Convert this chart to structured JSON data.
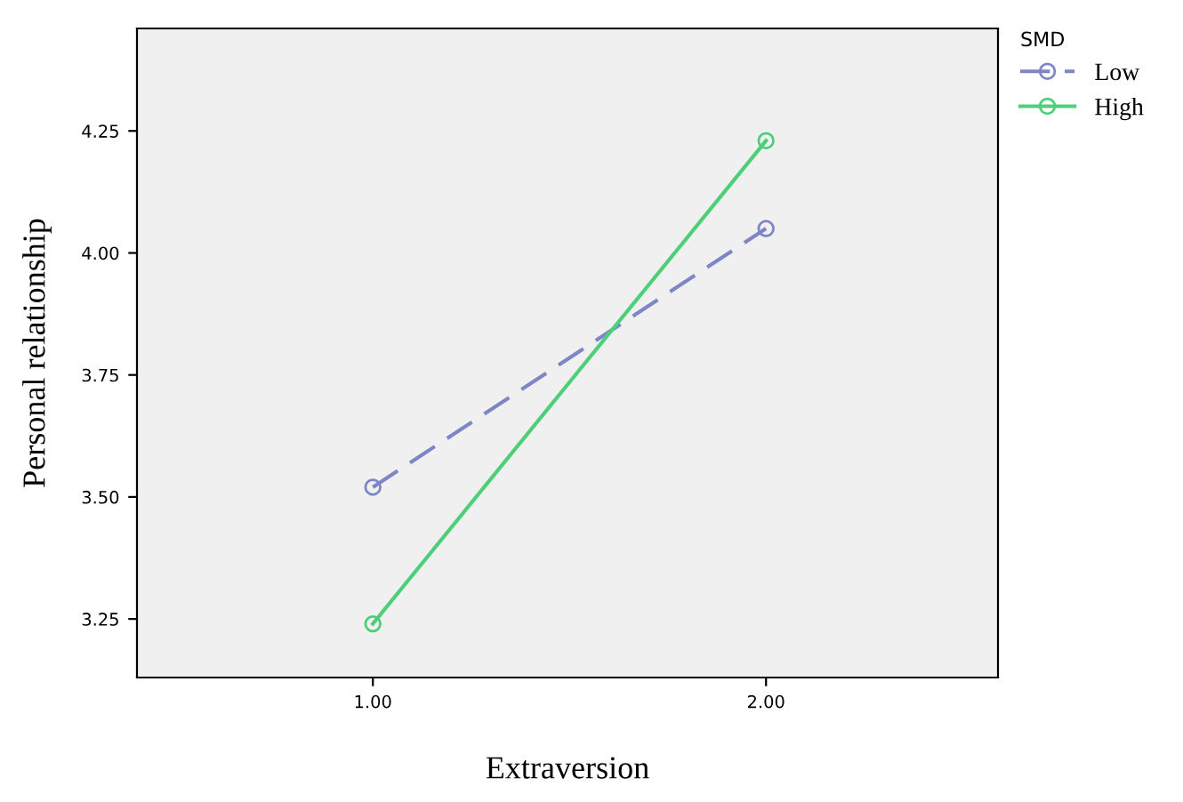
{
  "chart_data": {
    "type": "line",
    "xlabel": "Extraversion",
    "ylabel": "Personal relationship",
    "legend_title": "SMD",
    "x": [
      1,
      2
    ],
    "series": [
      {
        "name": "Low",
        "color": "#7e86c6",
        "values": [
          3.52,
          4.05
        ],
        "line_style": "dashed"
      },
      {
        "name": "High",
        "color": "#4ccf78",
        "values": [
          3.24,
          4.23
        ],
        "line_style": "solid"
      }
    ],
    "xlim": [
      0.4,
      2.59
    ],
    "ylim": [
      3.13,
      4.46
    ],
    "xticks": [
      {
        "value": 1,
        "label": "1.00"
      },
      {
        "value": 2,
        "label": "2.00"
      }
    ],
    "yticks": [
      {
        "value": 3.25,
        "label": "3.25"
      },
      {
        "value": 3.5,
        "label": "3.50"
      },
      {
        "value": 3.75,
        "label": "3.75"
      },
      {
        "value": 4.0,
        "label": "4.00"
      },
      {
        "value": 4.25,
        "label": "4.25"
      }
    ],
    "marker": "circle",
    "grid": false,
    "legend": "top right"
  }
}
